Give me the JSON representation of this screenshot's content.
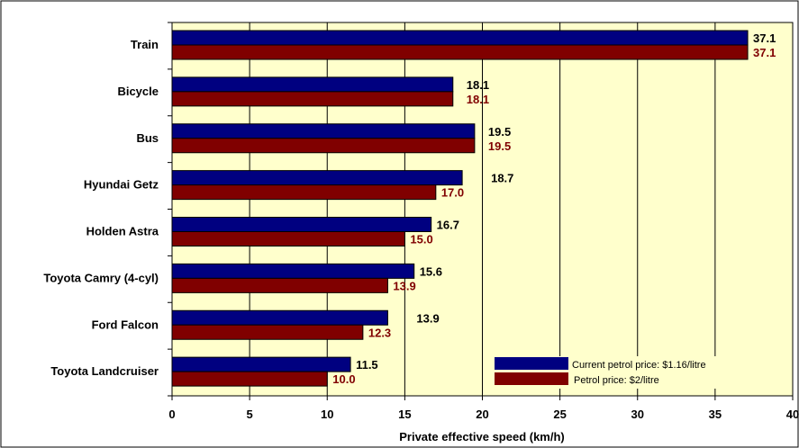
{
  "chart_data": {
    "type": "bar",
    "orientation": "horizontal",
    "categories": [
      "Train",
      "Bicycle",
      "Bus",
      "Hyundai Getz",
      "Holden Astra",
      "Toyota Camry (4-cyl)",
      "Ford Falcon",
      "Toyota Landcruiser"
    ],
    "series": [
      {
        "name": "Current petrol price: $1.16/litre",
        "color": "#000080",
        "label_color": "#000000",
        "values": [
          37.1,
          18.1,
          19.5,
          18.7,
          16.7,
          15.6,
          13.9,
          11.5
        ],
        "labels": [
          "37.1",
          "18.1",
          "19.5",
          "18.7",
          "16.7",
          "15.6",
          "13.9",
          "11.5"
        ]
      },
      {
        "name": "Petrol price: $2/litre",
        "color": "#800000",
        "label_color": "#800000",
        "values": [
          37.1,
          18.1,
          19.5,
          17.0,
          15.0,
          13.9,
          12.3,
          10.0
        ],
        "labels": [
          "37.1",
          "18.1",
          "19.5",
          "17.0",
          "15.0",
          "13.9",
          "12.3",
          "10.0"
        ]
      }
    ],
    "xlabel": "Private effective speed (km/h)",
    "ylabel": "",
    "xlim": [
      0,
      40
    ],
    "xticks": [
      "0",
      "5",
      "10",
      "15",
      "20",
      "25",
      "30",
      "35",
      "40"
    ],
    "grid": "vertical",
    "legend_position": "bottom-right",
    "plot_background": "#FFFFCC"
  }
}
